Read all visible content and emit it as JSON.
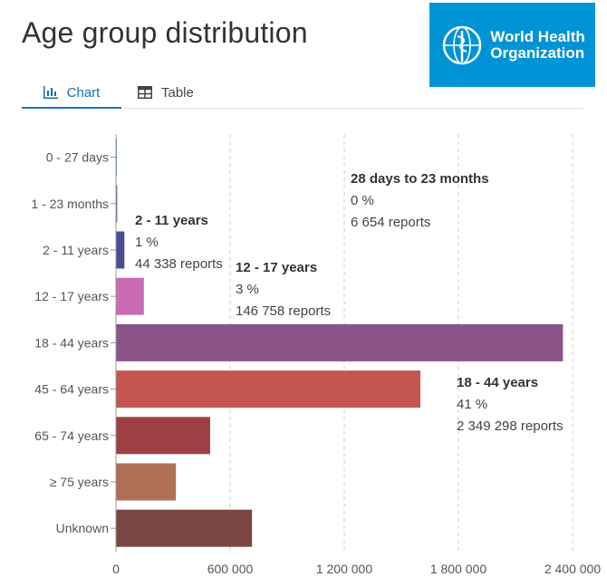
{
  "header": {
    "title": "Age group distribution",
    "logo_text_line1": "World Health",
    "logo_text_line2": "Organization",
    "logo_color": "#0093d5"
  },
  "tabs": [
    {
      "label": "Chart",
      "icon": "bar-chart-icon",
      "active": true
    },
    {
      "label": "Table",
      "icon": "table-icon",
      "active": false
    }
  ],
  "chart_data": {
    "type": "bar",
    "orientation": "horizontal",
    "categories": [
      "0 - 27 days",
      "1 - 23 months",
      "2 - 11 years",
      "12 - 17 years",
      "18 - 44 years",
      "45 - 64 years",
      "65 - 74 years",
      "≥ 75 years",
      "Unknown"
    ],
    "values": [
      1500,
      6654,
      44338,
      146758,
      2349298,
      1600000,
      495000,
      315000,
      715000
    ],
    "colors": [
      "#5b8cc8",
      "#4f6bb0",
      "#4b4d92",
      "#c96cb4",
      "#8b5489",
      "#c45650",
      "#9c4044",
      "#b06f57",
      "#7b4542"
    ],
    "xlim": [
      0,
      2400000
    ],
    "xticks": [
      "0",
      "600 000",
      "1 200 000",
      "1 800 000",
      "2 400 000"
    ],
    "xtick_values": [
      0,
      600000,
      1200000,
      1800000,
      2400000
    ],
    "grid": "vertical-dashed",
    "annotations": [
      {
        "category": "1 - 23 months",
        "title": "28 days to 23 months",
        "percent": "0 %",
        "reports": "6 654 reports"
      },
      {
        "category": "2 - 11 years",
        "title": "2 - 11 years",
        "percent": "1 %",
        "reports": "44 338 reports"
      },
      {
        "category": "12 - 17 years",
        "title": "12 - 17 years",
        "percent": "3 %",
        "reports": "146 758 reports"
      },
      {
        "category": "18 - 44 years",
        "title": "18 - 44 years",
        "percent": "41 %",
        "reports": "2 349 298 reports"
      }
    ]
  }
}
